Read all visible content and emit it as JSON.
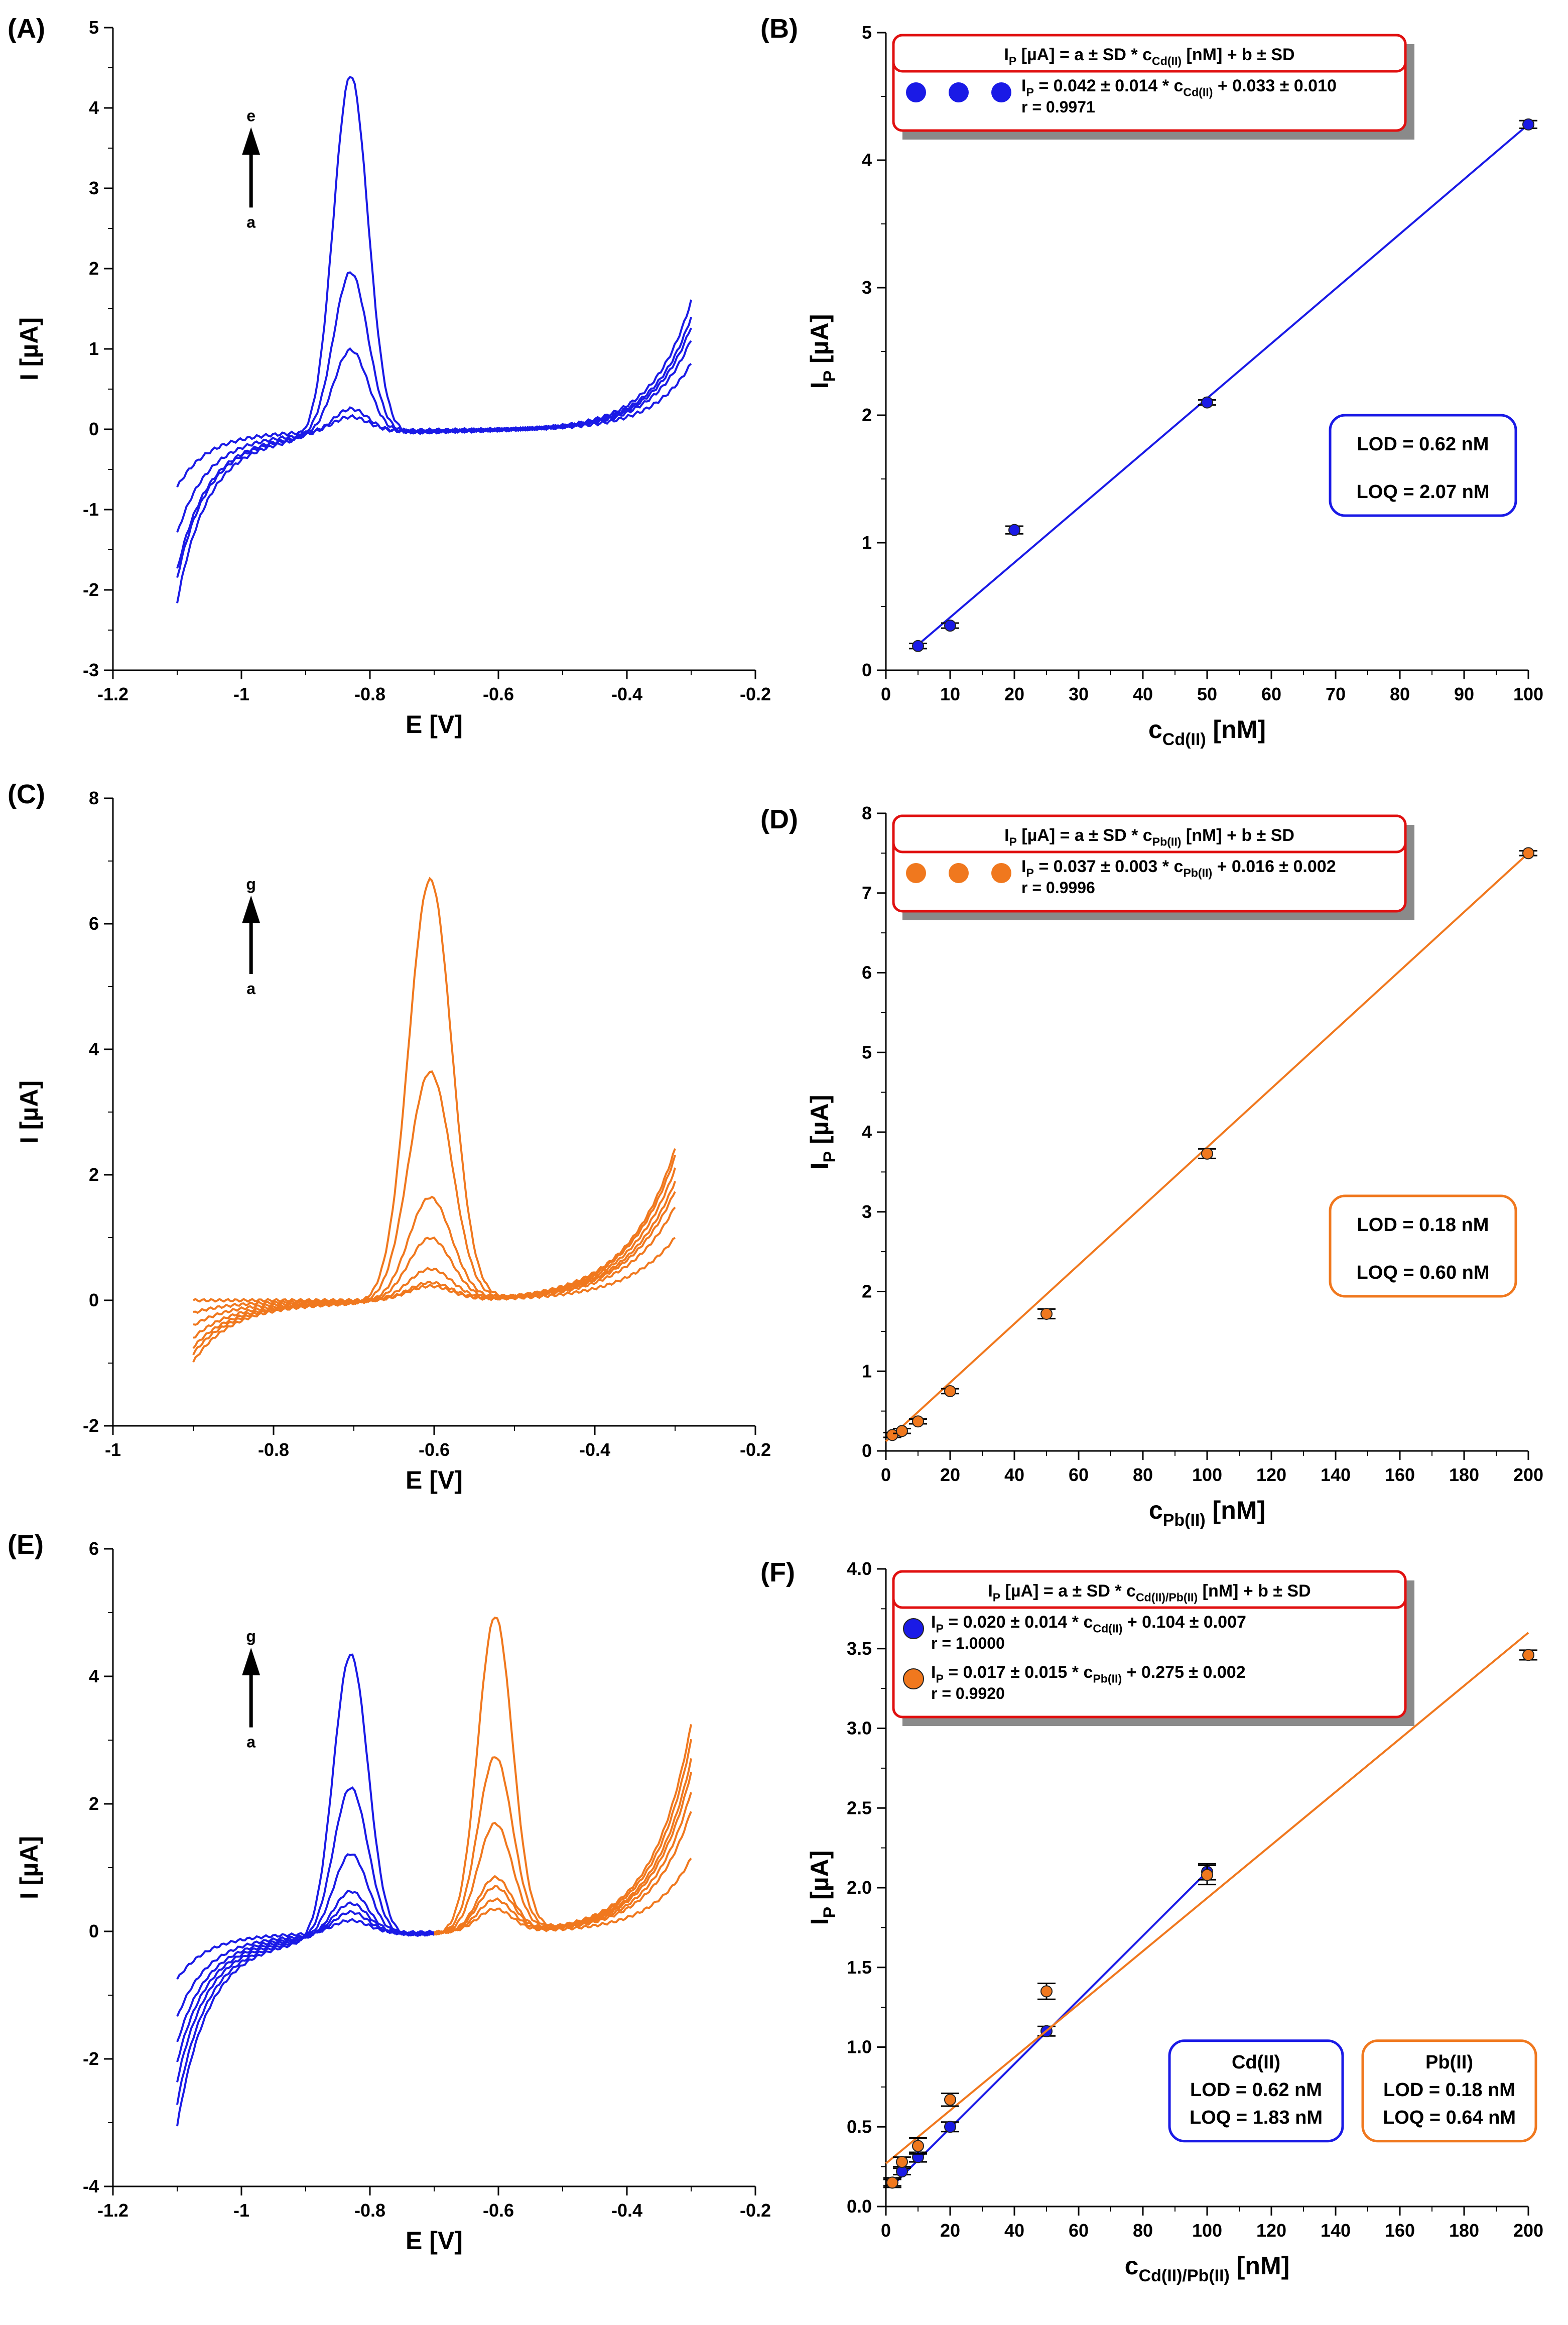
{
  "chart_data": [
    {
      "panel": "(A)",
      "type": "line",
      "xlabel": "E [V]",
      "ylabel": "I [µA]",
      "xlim": [
        -1.2,
        -0.2
      ],
      "ylim": [
        -3,
        5
      ],
      "xticks": [
        "-1.2",
        "-1",
        "-0.8",
        "-0.6",
        "-0.4",
        "-0.2"
      ],
      "yticks": [
        "-3",
        "-2",
        "-1",
        "0",
        "1",
        "2",
        "3",
        "4",
        "5"
      ],
      "color": "#1a1ae6",
      "arrow": {
        "top": "e",
        "bottom": "a"
      },
      "x_range": [
        -1.1,
        -0.3
      ],
      "peaks": [
        {
          "x": -0.83,
          "height": [
            0.18,
            0.3,
            1.05,
            2.02,
            4.48
          ]
        }
      ],
      "curves": [
        {
          "start": -0.72,
          "end": 0.82
        },
        {
          "start": -1.3,
          "end": 1.12
        },
        {
          "start": -1.75,
          "end": 1.28
        },
        {
          "start": -1.85,
          "end": 1.4
        },
        {
          "start": -2.15,
          "end": 1.6
        }
      ]
    },
    {
      "panel": "(B)",
      "type": "scatter",
      "xlabel": "c",
      "xlabel_sub": "Cd(II)",
      "xlabel_unit": " [nM]",
      "ylabel": "I",
      "ylabel_sub": "P",
      "ylabel_unit": " [µA]",
      "xlim": [
        0,
        100
      ],
      "ylim": [
        0,
        5
      ],
      "xticks": [
        "0",
        "10",
        "20",
        "30",
        "40",
        "50",
        "60",
        "70",
        "80",
        "90",
        "100"
      ],
      "yticks": [
        "0",
        "1",
        "2",
        "3",
        "4",
        "5"
      ],
      "series": [
        {
          "color": "#1a1ae6",
          "x": [
            5,
            10,
            20,
            50,
            100
          ],
          "y": [
            0.19,
            0.35,
            1.1,
            2.1,
            4.28
          ],
          "err": [
            0.02,
            0.02,
            0.03,
            0.02,
            0.03
          ],
          "fit": [
            [
              5,
              0.2
            ],
            [
              100,
              4.28
            ]
          ]
        }
      ],
      "legend_header": [
        "I",
        "P",
        " [µA] = a ± SD * c",
        "Cd(II)",
        " [nM] + b ± SD"
      ],
      "legend_entries": [
        {
          "color": "#1a1ae6",
          "line1": [
            "I",
            "P",
            " = 0.042 ± 0.014 * c",
            "Cd(II)",
            " + 0.033 ± 0.010"
          ],
          "line2": "r = 0.9971"
        }
      ],
      "lod_box": {
        "color": "#1a1ae6",
        "lines": [
          "LOD = 0.62 nM",
          "LOQ = 2.07 nM"
        ]
      }
    },
    {
      "panel": "(C)",
      "type": "line",
      "xlabel": "E [V]",
      "ylabel": "I [µA]",
      "xlim": [
        -1,
        -0.2
      ],
      "ylim": [
        -2,
        8
      ],
      "xticks": [
        "-1",
        "-0.8",
        "-0.6",
        "-0.4",
        "-0.2"
      ],
      "yticks": [
        "-2",
        "0",
        "2",
        "4",
        "6",
        "8"
      ],
      "color": "#f0781e",
      "arrow": {
        "top": "g",
        "bottom": "a"
      },
      "x_range": [
        -0.9,
        -0.3
      ],
      "peaks": [
        {
          "x": -0.605,
          "height": [
            0.22,
            0.28,
            0.5,
            1.0,
            1.65,
            3.65,
            6.72
          ]
        }
      ],
      "curves": [
        {
          "start": 0.0,
          "end": 1.0
        },
        {
          "start": -0.2,
          "end": 1.5
        },
        {
          "start": -0.4,
          "end": 1.75
        },
        {
          "start": -0.6,
          "end": 1.9
        },
        {
          "start": -0.75,
          "end": 2.1
        },
        {
          "start": -0.85,
          "end": 2.3
        },
        {
          "start": -0.98,
          "end": 2.42
        }
      ]
    },
    {
      "panel": "(D)",
      "type": "scatter",
      "xlabel": "c",
      "xlabel_sub": "Pb(II)",
      "xlabel_unit": " [nM]",
      "ylabel": "I",
      "ylabel_sub": "P",
      "ylabel_unit": " [µA]",
      "xlim": [
        0,
        200
      ],
      "ylim": [
        0,
        8
      ],
      "xticks": [
        "0",
        "20",
        "40",
        "60",
        "80",
        "100",
        "120",
        "140",
        "160",
        "180",
        "200"
      ],
      "yticks": [
        "0",
        "1",
        "2",
        "3",
        "4",
        "5",
        "6",
        "7",
        "8"
      ],
      "series": [
        {
          "color": "#f0781e",
          "x": [
            2,
            5,
            10,
            20,
            50,
            100,
            200
          ],
          "y": [
            0.2,
            0.25,
            0.37,
            0.75,
            1.72,
            3.73,
            7.5
          ],
          "err": [
            0.03,
            0.03,
            0.03,
            0.03,
            0.06,
            0.06,
            0.03
          ],
          "fit": [
            [
              0,
              0.12
            ],
            [
              200,
              7.5
            ]
          ]
        }
      ],
      "legend_header": [
        "I",
        "P",
        " [µA] = a ± SD * c",
        "Pb(II)",
        " [nM] + b ± SD"
      ],
      "legend_entries": [
        {
          "color": "#f0781e",
          "line1": [
            "I",
            "P",
            " = 0.037 ± 0.003 * c",
            "Pb(II)",
            " + 0.016 ± 0.002"
          ],
          "line2": "r = 0.9996"
        }
      ],
      "lod_box": {
        "color": "#f0781e",
        "lines": [
          "LOD = 0.18 nM",
          "LOQ = 0.60 nM"
        ]
      }
    },
    {
      "panel": "(E)",
      "type": "line",
      "xlabel": "E [V]",
      "ylabel": "I [µA]",
      "xlim": [
        -1.2,
        -0.2
      ],
      "ylim": [
        -4,
        6
      ],
      "xticks": [
        "-1.2",
        "-1",
        "-0.8",
        "-0.6",
        "-0.4",
        "-0.2"
      ],
      "yticks": [
        "-4",
        "-2",
        "0",
        "2",
        "4",
        "6"
      ],
      "color": "#1a1ae6",
      "color2": "#f0781e",
      "split_x": -0.7,
      "arrow": {
        "top": "g",
        "bottom": "a"
      },
      "x_range": [
        -1.1,
        -0.3
      ],
      "peaks": [
        {
          "x": -0.83,
          "height": [
            0.2,
            0.35,
            0.5,
            0.7,
            1.3,
            2.35,
            4.45
          ]
        },
        {
          "x": -0.605,
          "height": [
            0.35,
            0.5,
            0.7,
            0.85,
            1.7,
            2.75,
            4.95
          ]
        }
      ],
      "curves": [
        {
          "start": -0.75,
          "end": 1.15
        },
        {
          "start": -1.35,
          "end": 1.9
        },
        {
          "start": -1.75,
          "end": 2.2
        },
        {
          "start": -2.05,
          "end": 2.5
        },
        {
          "start": -2.35,
          "end": 2.7
        },
        {
          "start": -2.7,
          "end": 3.0
        },
        {
          "start": -3.05,
          "end": 3.25
        }
      ]
    },
    {
      "panel": "(F)",
      "type": "scatter",
      "xlabel": "c",
      "xlabel_sub": "Cd(II)/Pb(II)",
      "xlabel_unit": " [nM]",
      "ylabel": "I",
      "ylabel_sub": "P",
      "ylabel_unit": " [µA]",
      "xlim": [
        0,
        200
      ],
      "ylim": [
        0,
        4
      ],
      "xticks": [
        "0",
        "20",
        "40",
        "60",
        "80",
        "100",
        "120",
        "140",
        "160",
        "180",
        "200"
      ],
      "yticks": [
        "0.0",
        "0.5",
        "1.0",
        "1.5",
        "2.0",
        "2.5",
        "3.0",
        "3.5",
        "4.0"
      ],
      "series": [
        {
          "color": "#1a1ae6",
          "x": [
            2,
            5,
            10,
            20,
            50,
            100
          ],
          "y": [
            0.15,
            0.22,
            0.31,
            0.5,
            1.1,
            2.1
          ],
          "err": [
            0.02,
            0.02,
            0.03,
            0.03,
            0.03,
            0.05
          ],
          "fit": [
            [
              2,
              0.13
            ],
            [
              100,
              2.1
            ]
          ]
        },
        {
          "color": "#f0781e",
          "x": [
            2,
            5,
            10,
            20,
            50,
            100,
            200
          ],
          "y": [
            0.15,
            0.28,
            0.38,
            0.67,
            1.35,
            2.08,
            3.46
          ],
          "err": [
            0.03,
            0.03,
            0.05,
            0.04,
            0.05,
            0.06,
            0.03
          ],
          "fit": [
            [
              0,
              0.27
            ],
            [
              200,
              3.6
            ]
          ]
        }
      ],
      "legend_header": [
        "I",
        "P",
        " [µA] = a ± SD * c",
        "Cd(II)/Pb(II)",
        " [nM] + b ± SD"
      ],
      "legend_entries": [
        {
          "color": "#1a1ae6",
          "line1": [
            "I",
            "P",
            " = 0.020 ± 0.014 * c",
            "Cd(II)",
            " + 0.104 ± 0.007"
          ],
          "line2": "r = 1.0000"
        },
        {
          "color": "#f0781e",
          "line1": [
            "I",
            "P",
            " = 0.017 ± 0.015 * c",
            "Pb(II)",
            " + 0.275 ± 0.002"
          ],
          "line2": "r = 0.9920"
        }
      ],
      "lod_boxes": [
        {
          "color": "#1a1ae6",
          "lines": [
            "Cd(II)",
            "LOD = 0.62 nM",
            "LOQ = 1.83 nM"
          ]
        },
        {
          "color": "#f0781e",
          "lines": [
            "Pb(II)",
            "LOD = 0.18 nM",
            "LOQ = 0.64 nM"
          ]
        }
      ]
    }
  ]
}
